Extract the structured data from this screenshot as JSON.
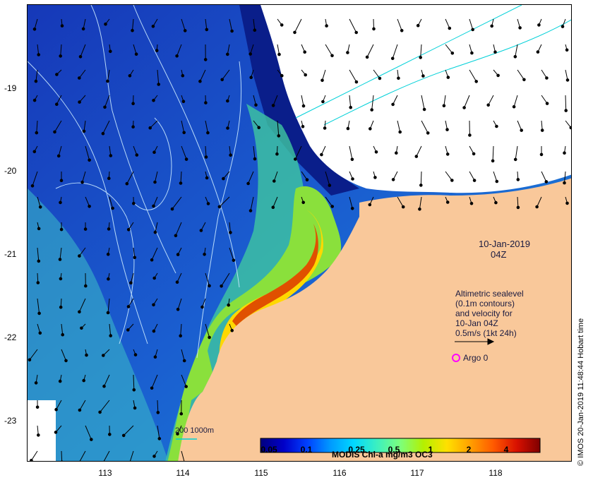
{
  "lat_labels": [
    "-19",
    "-20",
    "-21",
    "-22",
    "-23"
  ],
  "lon_labels": [
    "113",
    "114",
    "115",
    "116",
    "117",
    "118"
  ],
  "date_line": "10-Jan-2019",
  "time_line": "04Z",
  "legend_lines": [
    "Altimetric sealevel",
    "(0.1m contours)",
    "and velocity for",
    "10-Jan 04Z",
    "0.5m/s (1kt 24h)"
  ],
  "argo_label": "Argo 0",
  "isobath_label": "200  1000m",
  "colorbar": {
    "title": "MODIS Chl-a mg/m3 OC3",
    "ticks": [
      "0.05",
      "0.1",
      "0.25",
      "0.5",
      "1",
      "2",
      "4"
    ],
    "colors": [
      "#00007f",
      "#0000c8",
      "#0040ff",
      "#009aff",
      "#00d8ff",
      "#3cf0c0",
      "#7cff7c",
      "#b4f000",
      "#ffe000",
      "#ffa000",
      "#ff5a00",
      "#d81000",
      "#7f0000"
    ]
  },
  "credit": "© IMOS 20-Jan-2019 11:48:44 Hobart time",
  "colors": {
    "land": "#f9c89a",
    "cloud": "#ffffff",
    "deep_ocean": "#1a4fc4",
    "contour": "#c8e8ff",
    "isobath": "#00d0d8",
    "argo": "#ff00ff"
  }
}
